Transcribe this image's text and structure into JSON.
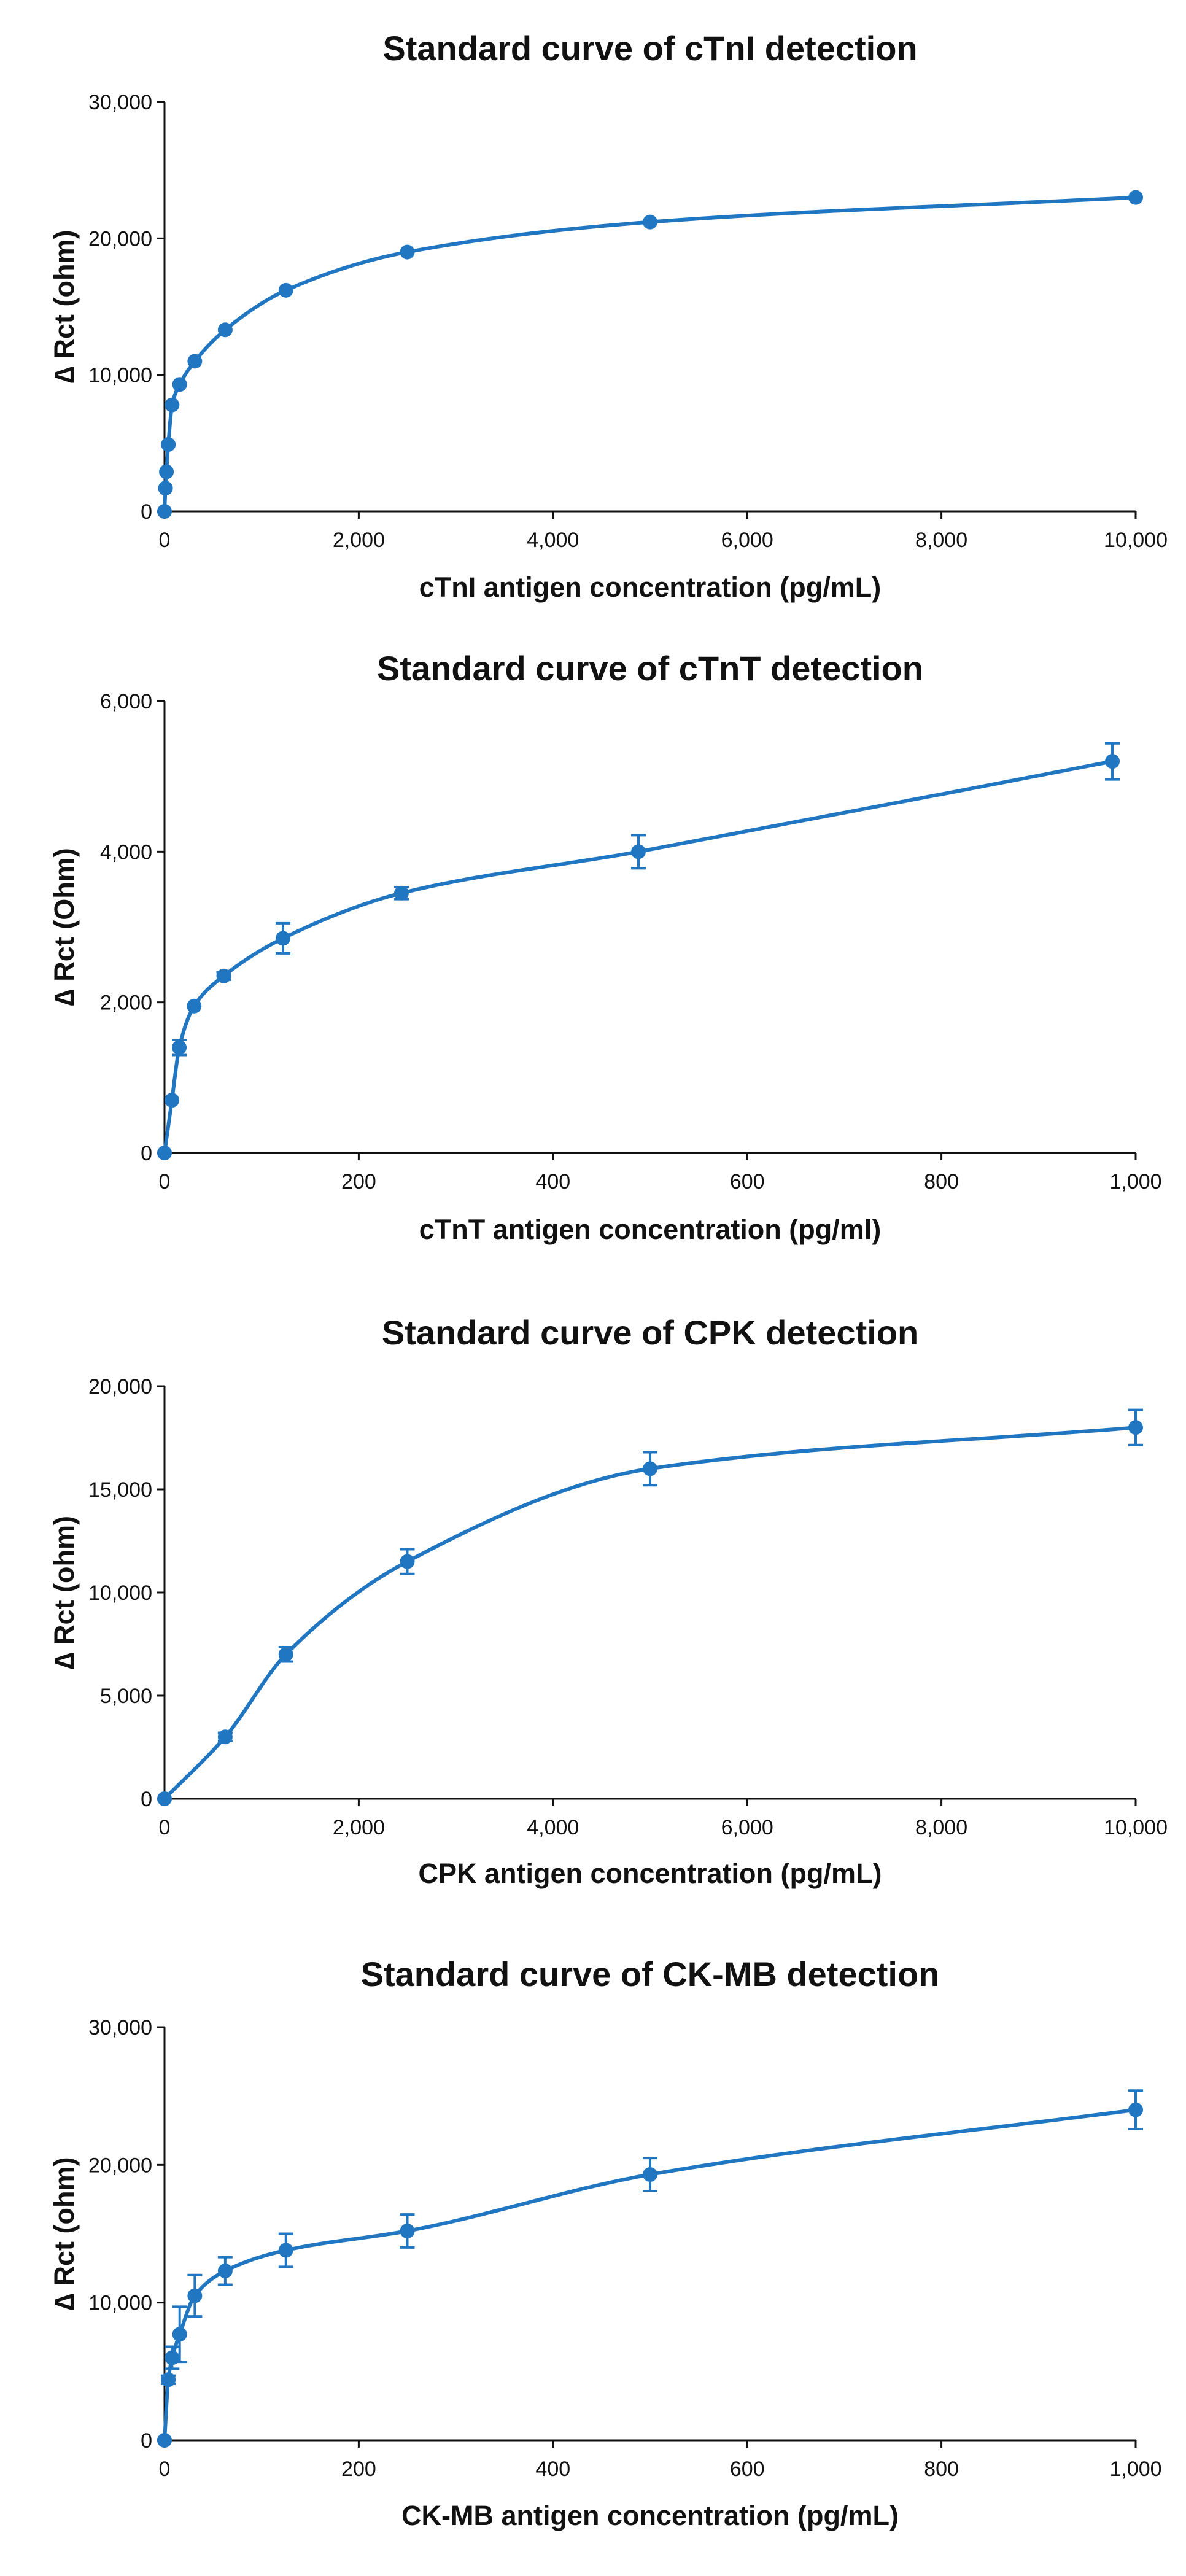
{
  "colors": {
    "series": "#2176c1",
    "text": "#111111",
    "axis": "#111111"
  },
  "chart_data": [
    {
      "type": "scatter",
      "title": "Standard curve of cTnI detection",
      "xlabel": "cTnI antigen concentration (pg/mL)",
      "ylabel": "∆ Rct (ohm)",
      "xlim": [
        0,
        10000
      ],
      "ylim": [
        0,
        30000
      ],
      "xticks": [
        0,
        2000,
        4000,
        6000,
        8000,
        10000
      ],
      "yticks": [
        0,
        10000,
        20000,
        30000
      ],
      "xtick_labels": [
        "0",
        "2,000",
        "4,000",
        "6,000",
        "8,000",
        "10,000"
      ],
      "ytick_labels": [
        "0",
        "10,000",
        "20,000",
        "30,000"
      ],
      "points": [
        {
          "x": 0,
          "y": 0,
          "err": 0
        },
        {
          "x": 9.8,
          "y": 1700,
          "err": 0
        },
        {
          "x": 19.5,
          "y": 2900,
          "err": 0
        },
        {
          "x": 39,
          "y": 4900,
          "err": 0
        },
        {
          "x": 78,
          "y": 7800,
          "err": 0
        },
        {
          "x": 156,
          "y": 9300,
          "err": 0
        },
        {
          "x": 312,
          "y": 11000,
          "err": 0
        },
        {
          "x": 625,
          "y": 13300,
          "err": 0
        },
        {
          "x": 1250,
          "y": 16200,
          "err": 0
        },
        {
          "x": 2500,
          "y": 19000,
          "err": 0
        },
        {
          "x": 5000,
          "y": 21200,
          "err": 0
        },
        {
          "x": 10000,
          "y": 23000,
          "err": 0
        }
      ]
    },
    {
      "type": "scatter",
      "title": "Standard curve of cTnT detection",
      "xlabel": "cTnT antigen concentration (pg/ml)",
      "ylabel": "∆ Rct (Ohm)",
      "xlim": [
        0,
        1000
      ],
      "ylim": [
        0,
        6000
      ],
      "xticks": [
        0,
        200,
        400,
        600,
        800,
        1000
      ],
      "yticks": [
        0,
        2000,
        4000,
        6000
      ],
      "xtick_labels": [
        "0",
        "200",
        "400",
        "600",
        "800",
        "1,000"
      ],
      "ytick_labels": [
        "0",
        "2,000",
        "4,000",
        "6,000"
      ],
      "points": [
        {
          "x": 0,
          "y": 0,
          "err": 0
        },
        {
          "x": 7.6,
          "y": 700,
          "err": 0
        },
        {
          "x": 15.2,
          "y": 1400,
          "err": 100
        },
        {
          "x": 30.5,
          "y": 1950,
          "err": 0
        },
        {
          "x": 61,
          "y": 2350,
          "err": 50
        },
        {
          "x": 122,
          "y": 2850,
          "err": 200
        },
        {
          "x": 244,
          "y": 3450,
          "err": 80
        },
        {
          "x": 488,
          "y": 4000,
          "err": 220
        },
        {
          "x": 976,
          "y": 5200,
          "err": 240
        }
      ]
    },
    {
      "type": "scatter",
      "title": "Standard curve of CPK detection",
      "xlabel": "CPK antigen concentration (pg/mL)",
      "ylabel": "∆ Rct (ohm)",
      "xlim": [
        0,
        10000
      ],
      "ylim": [
        0,
        20000
      ],
      "xticks": [
        0,
        2000,
        4000,
        6000,
        8000,
        10000
      ],
      "yticks": [
        0,
        5000,
        10000,
        15000,
        20000
      ],
      "xtick_labels": [
        "0",
        "2,000",
        "4,000",
        "6,000",
        "8,000",
        "10,000"
      ],
      "ytick_labels": [
        "0",
        "5,000",
        "10,000",
        "15,000",
        "20,000"
      ],
      "points": [
        {
          "x": 0,
          "y": 0,
          "err": 0
        },
        {
          "x": 625,
          "y": 3000,
          "err": 200
        },
        {
          "x": 1250,
          "y": 7000,
          "err": 350
        },
        {
          "x": 2500,
          "y": 11500,
          "err": 600
        },
        {
          "x": 5000,
          "y": 16000,
          "err": 800
        },
        {
          "x": 10000,
          "y": 18000,
          "err": 850
        }
      ]
    },
    {
      "type": "scatter",
      "title": "Standard curve of CK-MB detection",
      "xlabel": "CK-MB antigen concentration (pg/mL)",
      "ylabel": "∆ Rct (ohm)",
      "xlim": [
        0,
        1000
      ],
      "ylim": [
        0,
        30000
      ],
      "xticks": [
        0,
        200,
        400,
        600,
        800,
        1000
      ],
      "yticks": [
        0,
        10000,
        20000,
        30000
      ],
      "xtick_labels": [
        "0",
        "200",
        "400",
        "600",
        "800",
        "1,000"
      ],
      "ytick_labels": [
        "0",
        "10,000",
        "20,000",
        "30,000"
      ],
      "points": [
        {
          "x": 0,
          "y": 0,
          "err": 0
        },
        {
          "x": 3.9,
          "y": 4400,
          "err": 300
        },
        {
          "x": 7.8,
          "y": 6000,
          "err": 800
        },
        {
          "x": 15.6,
          "y": 7700,
          "err": 2000
        },
        {
          "x": 31.2,
          "y": 10500,
          "err": 1500
        },
        {
          "x": 62.5,
          "y": 12300,
          "err": 1000
        },
        {
          "x": 125,
          "y": 13800,
          "err": 1200
        },
        {
          "x": 250,
          "y": 15200,
          "err": 1200
        },
        {
          "x": 500,
          "y": 19300,
          "err": 1200
        },
        {
          "x": 1000,
          "y": 24000,
          "err": 1400
        }
      ]
    }
  ]
}
